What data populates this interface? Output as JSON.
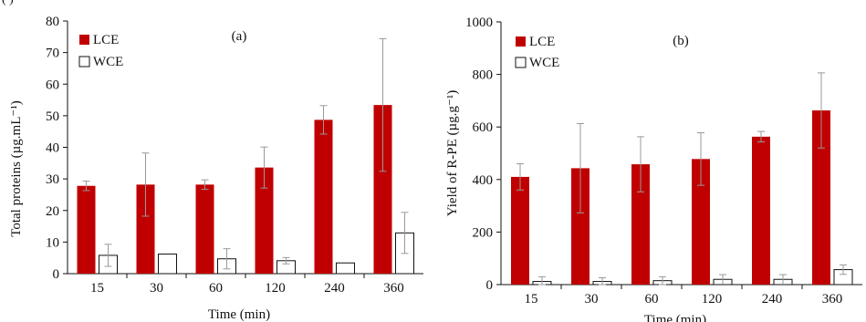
{
  "figure": {
    "cropped_header": "(             )"
  },
  "chart_data": [
    {
      "type": "bar",
      "title": "(a)",
      "categories": [
        "15",
        "30",
        "60",
        "120",
        "240",
        "360"
      ],
      "xlabel": "Time (min)",
      "ylabel": "Total proteins (µg.mL⁻¹)",
      "ylim": [
        0,
        80
      ],
      "yticks": [
        0,
        10,
        20,
        30,
        40,
        50,
        60,
        70,
        80
      ],
      "grid": false,
      "legend_position": "top-left",
      "series": [
        {
          "name": "LCE",
          "color": "#c00000",
          "values": [
            27.8,
            28.2,
            28.2,
            33.6,
            48.7,
            53.4
          ],
          "errors": [
            1.5,
            10,
            1.5,
            6.5,
            4.5,
            21
          ]
        },
        {
          "name": "WCE",
          "color": "#ffffff",
          "values": [
            5.8,
            6.2,
            4.7,
            4.1,
            3.4,
            12.9
          ],
          "errors": [
            3.5,
            0,
            3.2,
            1,
            0,
            6.5
          ]
        }
      ]
    },
    {
      "type": "bar",
      "title": "(b)",
      "categories": [
        "15",
        "30",
        "60",
        "120",
        "240",
        "360"
      ],
      "xlabel": "Time (min)",
      "ylabel": "Yield of R-PE (µg.g⁻¹)",
      "ylim": [
        0,
        1000
      ],
      "yticks": [
        0,
        200,
        400,
        600,
        800,
        1000
      ],
      "grid": false,
      "legend_position": "top-left",
      "series": [
        {
          "name": "LCE",
          "color": "#c00000",
          "values": [
            410,
            443,
            458,
            478,
            563,
            663
          ],
          "errors": [
            50,
            170,
            105,
            100,
            20,
            143
          ]
        },
        {
          "name": "WCE",
          "color": "#ffffff",
          "values": [
            12,
            12,
            15,
            20,
            20,
            57
          ],
          "errors": [
            18,
            14,
            15,
            18,
            18,
            18
          ]
        }
      ]
    }
  ]
}
